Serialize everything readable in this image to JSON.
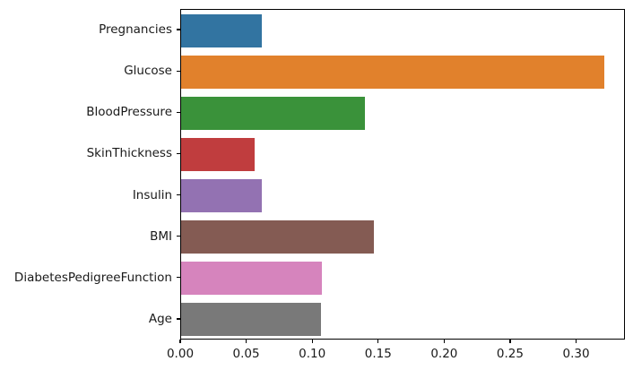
{
  "figure": {
    "background": "#ffffff",
    "spine_color": "#000000",
    "tick_label_color": "#1a1a1a"
  },
  "chart_data": {
    "type": "bar",
    "orientation": "horizontal",
    "title": "",
    "xlabel": "",
    "ylabel": "",
    "categories": [
      "Pregnancies",
      "Glucose",
      "BloodPressure",
      "SkinThickness",
      "Insulin",
      "BMI",
      "DiabetesPedigreeFunction",
      "Age"
    ],
    "values": [
      0.061,
      0.321,
      0.139,
      0.056,
      0.061,
      0.146,
      0.107,
      0.106
    ],
    "bar_colors": [
      "#3274a1",
      "#e1812c",
      "#3a923a",
      "#c03d3e",
      "#9372b2",
      "#845b53",
      "#d684bd",
      "#797979"
    ],
    "xlim": [
      0,
      0.337
    ],
    "x_ticks": [
      0.0,
      0.05,
      0.1,
      0.15,
      0.2,
      0.25,
      0.3
    ],
    "x_tick_labels": [
      "0.00",
      "0.05",
      "0.10",
      "0.15",
      "0.20",
      "0.25",
      "0.30"
    ],
    "grid": false,
    "legend": null,
    "bar_relative_height": 0.8
  }
}
